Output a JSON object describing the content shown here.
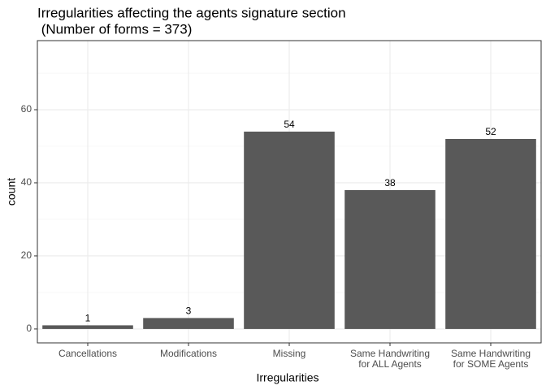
{
  "chart_data": {
    "type": "bar",
    "title": [
      "Irregularities affecting the agents signature section",
      " (Number of forms = 373)"
    ],
    "x_label": "Irregularities",
    "y_label": "count",
    "categories": [
      "Cancellations",
      "Modifications",
      "Missing",
      "Same Handwriting\nfor ALL Agents",
      "Same Handwriting\nfor SOME Agents"
    ],
    "values": [
      1,
      3,
      54,
      38,
      52
    ],
    "color": "#595959",
    "ylim": [
      -3.8,
      78.9
    ],
    "yticks": [
      0,
      20,
      40,
      60
    ],
    "yminor": [
      10,
      30,
      50,
      70
    ],
    "grid": true
  }
}
